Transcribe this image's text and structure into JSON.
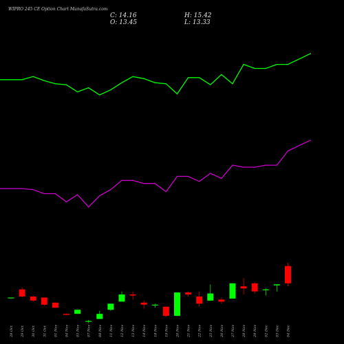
{
  "chart_data": {
    "type": "candlestick",
    "title": "WIPRO 245 CE Option Chart MunafaSutra.com",
    "readout": {
      "close": "14.16",
      "open": "13.45",
      "high": "15.42",
      "low": "13.33"
    },
    "colors": {
      "up": "#00ff00",
      "down": "#ff0000",
      "upper_line": "#00ff00",
      "lower_line": "#cc00cc",
      "background": "#000000"
    },
    "categories": [
      "28 Oct",
      "29 Oct",
      "30 Oct",
      "31 Oct",
      "01 Nov",
      "04 Nov",
      "05 Nov",
      "07 Nov",
      "08 Nov",
      "11 Nov",
      "12 Nov",
      "13 Nov",
      "14 Nov",
      "18 Nov",
      "19 Nov",
      "20 Nov",
      "21 Nov",
      "22 Nov",
      "25 Nov",
      "26 Nov",
      "27 Nov",
      "28 Nov",
      "29 Nov",
      "02 Dec",
      "03 Dec",
      "04 Dec"
    ],
    "ohlc": [
      [
        4.9,
        4.9,
        4.9,
        4.9
      ],
      [
        5.7,
        5.9,
        4.9,
        5.0
      ],
      [
        5.0,
        5.1,
        4.5,
        4.6
      ],
      [
        4.9,
        4.9,
        4.1,
        4.2
      ],
      [
        4.4,
        4.4,
        3.9,
        3.9
      ],
      [
        3.3,
        3.3,
        3.2,
        3.2
      ],
      [
        3.3,
        3.7,
        3.3,
        3.7
      ],
      [
        2.6,
        2.7,
        2.4,
        2.6
      ],
      [
        2.8,
        3.6,
        2.8,
        3.3
      ],
      [
        3.7,
        4.3,
        3.6,
        4.3
      ],
      [
        4.5,
        5.5,
        4.5,
        5.2
      ],
      [
        5.2,
        5.5,
        4.7,
        5.1
      ],
      [
        4.4,
        4.6,
        3.8,
        4.2
      ],
      [
        4.2,
        4.3,
        3.9,
        4.2
      ],
      [
        4.0,
        4.0,
        3.0,
        3.1
      ],
      [
        3.1,
        5.4,
        3.1,
        5.4
      ],
      [
        5.4,
        5.5,
        5.0,
        5.2
      ],
      [
        5.0,
        5.5,
        4.0,
        4.3
      ],
      [
        4.6,
        6.2,
        4.6,
        5.3
      ],
      [
        4.7,
        4.9,
        4.3,
        4.5
      ],
      [
        4.8,
        6.3,
        4.8,
        6.3
      ],
      [
        6.0,
        6.8,
        5.2,
        5.8
      ],
      [
        6.3,
        6.4,
        5.3,
        5.5
      ],
      [
        5.7,
        5.8,
        5.1,
        5.7
      ],
      [
        6.1,
        6.2,
        5.5,
        6.2
      ],
      [
        8.0,
        8.3,
        6.0,
        6.3
      ]
    ],
    "upper_line": [
      26.3,
      26.3,
      26.6,
      26.2,
      25.9,
      25.8,
      25.1,
      25.5,
      24.8,
      25.3,
      26.0,
      26.6,
      26.4,
      26.0,
      25.9,
      24.9,
      26.5,
      26.5,
      25.8,
      26.8,
      25.9,
      27.8,
      27.4,
      27.4,
      27.8,
      27.8
    ],
    "lower_line": [
      15.6,
      15.6,
      15.5,
      15.1,
      15.1,
      14.3,
      15.0,
      13.8,
      14.9,
      15.5,
      16.4,
      16.4,
      16.1,
      16.1,
      15.3,
      16.8,
      16.8,
      16.3,
      17.1,
      16.6,
      17.9,
      17.7,
      17.7,
      17.9,
      17.9,
      19.3
    ]
  }
}
